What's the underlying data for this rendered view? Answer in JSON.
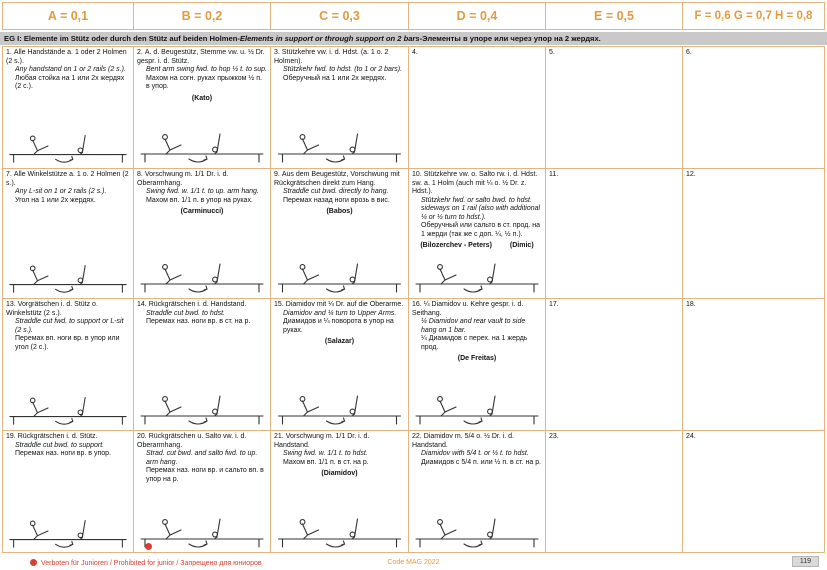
{
  "header": {
    "columns": [
      "A = 0,1",
      "B = 0,2",
      "C = 0,3",
      "D = 0,4",
      "E = 0,5",
      "F = 0,6 G = 0,7 H = 0,8"
    ]
  },
  "band": {
    "label": "EG I:",
    "de": "Elemente im Stütz oder durch den Stütz auf beiden Holmen",
    "sep": " - ",
    "en": "Elements in support or through support on 2 bars",
    "ru": "Элементы в упоре или через упор на 2 жердях."
  },
  "grid": {
    "cells": [
      {
        "num": "1.",
        "de": "Alle Handstände a. 1 oder 2 Holmen (2 s.).",
        "en": "Any handstand on 1 or 2 rails (2 s.).",
        "ru": "Любая стойка на 1 или 2х жердях (2 с.).",
        "names": [],
        "figure": true
      },
      {
        "num": "2.",
        "de": "A. d. Beugestütz, Stemme vw. u. ½ Dr. gespr. i. d. Stütz.",
        "en": "Bent arm swing fwd. to hop ½ t. to sup.",
        "ru": "Махом на согн. руках прыжком ½ п. в упор.",
        "names": [
          "(Kato)"
        ],
        "figure": true
      },
      {
        "num": "3.",
        "de": "Stützkehre vw. i. d. Hdst. (a. 1 o. 2 Holmen).",
        "en": "Stützkehr fwd. to hdst. (to 1 or 2 bars).",
        "ru": "Оберучный на 1 или 2х жердях.",
        "names": [],
        "figure": true
      },
      {
        "num": "4.",
        "figure": false
      },
      {
        "num": "5.",
        "figure": false
      },
      {
        "num": "6.",
        "figure": false
      },
      {
        "num": "7.",
        "de": "Alle Winkelstütze a. 1 o. 2 Holmen (2 s.).",
        "en": "Any L-sit on 1 or 2 rails (2 s.).",
        "ru": "Угол на 1 или 2х жердях.",
        "names": [],
        "figure": true
      },
      {
        "num": "8.",
        "de": "Vorschwung m. 1/1 Dr. i. d. Oberarmhang.",
        "en": "Swing fwd. w. 1/1 t. to up. arm hang.",
        "ru": "Махом вп. 1/1 п. в упор на руках.",
        "names": [
          "(Carminucci)"
        ],
        "figure": true
      },
      {
        "num": "9.",
        "de": "Aus dem Beugestütz, Vorschwung mit Rückgrätschen direkt zum Hang.",
        "en": "Straddle cut bwd. directly to hang.",
        "ru": "Перемах назад ноги врозь в вис.",
        "names": [
          "(Babos)"
        ],
        "figure": true
      },
      {
        "num": "10.",
        "de": "Stützkehre vw. o. Salto rw. i. d. Hdst. sw. a. 1 Holm (auch mit ¼ o. ½ Dr. z. Hdst.).",
        "en": "Stützkehr fwd. or salto bwd. to hdst. sideways on 1 rail (also with additional ¼ or ½ turn to hdst.).",
        "ru": "Оберучный или сальто в ст. прод. на 1 жерди (так же с доп. ¼, ½ п.).",
        "names": [
          "(Bilozerchev - Peters)",
          "(Dimic)"
        ],
        "figure": true
      },
      {
        "num": "11.",
        "figure": false
      },
      {
        "num": "12.",
        "figure": false
      },
      {
        "num": "13.",
        "de": "Vorgrätschen i. d. Stütz o. Winkelstütz (2 s.).",
        "en": "Straddle cut fwd. to support or L-sit (2 s.).",
        "ru": "Перемах вп. ноги вр. в упор или угол (2 с.).",
        "names": [],
        "figure": true
      },
      {
        "num": "14.",
        "de": "Rückgrätschen i. d. Handstand.",
        "en": "Straddle cut bwd. to hdst.",
        "ru": "Перемах наз. ноги вр. в ст. на р.",
        "names": [],
        "figure": true
      },
      {
        "num": "15.",
        "de": "Diamidov mit ¼ Dr. auf die Oberarme.",
        "en": "Diamidov and ¼ turn to Upper Arms.",
        "ru": "Диамидов и ¼ поворота в упор на руках.",
        "names": [
          "(Salazar)"
        ],
        "figure": true
      },
      {
        "num": "16.",
        "de": "¼ Diamidov u. Kehre gespr. i. d. Seithang.",
        "en": "¼ Diamidov and rear vault to side hang on 1 bar.",
        "ru": "¼ Диамидов с перех. на 1 жердь прод.",
        "names": [
          "(De Freitas)"
        ],
        "figure": true
      },
      {
        "num": "17.",
        "figure": false
      },
      {
        "num": "18.",
        "figure": false
      },
      {
        "num": "19.",
        "de": "Rückgrätschen i. d. Stütz.",
        "en": "Straddle cut bwd. to support.",
        "ru": "Перемах наз. ноги вр. в упор.",
        "names": [],
        "figure": true
      },
      {
        "num": "20.",
        "de": "Rückgrätschen u. Salto vw. i. d. Oberarmhang.",
        "en": "Strad. cut bwd. and salto fwd. to up. arm hang.",
        "ru": "Перемах наз. ноги вр. и сальто вп. в упор на р.",
        "names": [],
        "figure": true,
        "junior_prohibited": true
      },
      {
        "num": "21.",
        "de": "Vorschwung m. 1/1 Dr. i. d. Handstand.",
        "en": "Swing fwd. w. 1/1 t. to hdst.",
        "ru": "Махом вп. 1/1 п. в ст. на р.",
        "names": [
          "(Diamidov)"
        ],
        "figure": true
      },
      {
        "num": "22.",
        "de": "Diamidov m. 5/4 o. ½ Dr. i. d. Handstand.",
        "en": "Diamidov with 5/4 t. or ½ t. to hdst.",
        "ru": "Диамидов с 5/4 п. или ½ п. в ст. на р.",
        "names": [],
        "figure": true
      },
      {
        "num": "23.",
        "figure": false
      },
      {
        "num": "24.",
        "figure": false
      }
    ]
  },
  "footer": {
    "restriction": "Verboten für Junioren / Prohibited for junior / Запрещено для юниоров",
    "code": "Code MAG 2022",
    "page": "119"
  },
  "colors": {
    "accent": "#e59a3c",
    "border": "#e3b583",
    "band_bg": "#c9c9c9",
    "prohibited_red": "#e03c31"
  }
}
